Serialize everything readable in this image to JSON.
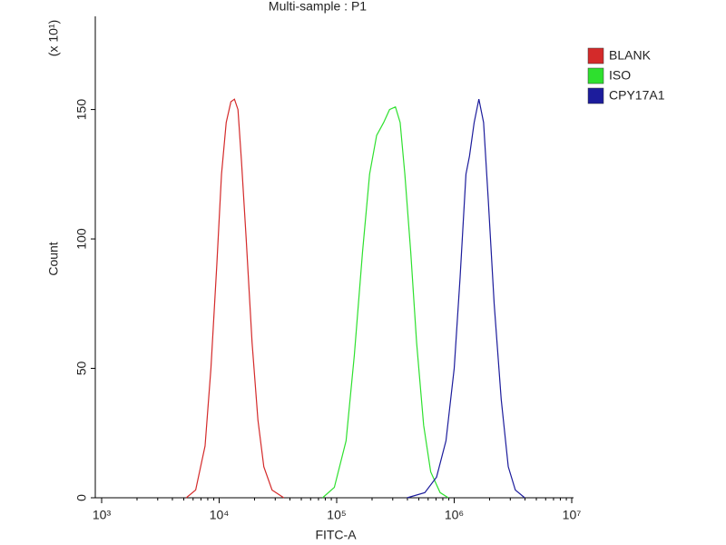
{
  "chart_data": {
    "type": "line",
    "title": "Multi-sample : P1",
    "x_label": "FITC-A",
    "y_label": "Count",
    "y_scale_note": "(x 10¹)",
    "x_log": true,
    "xlim": [
      1000,
      10000000
    ],
    "xticks": [
      {
        "value": 1000,
        "label": "10³"
      },
      {
        "value": 10000,
        "label": "10⁴"
      },
      {
        "value": 100000,
        "label": "10⁵"
      },
      {
        "value": 1000000,
        "label": "10⁶"
      },
      {
        "value": 10000000,
        "label": "10⁷"
      }
    ],
    "ylim": [
      0,
      186
    ],
    "yticks": [
      0,
      50,
      100,
      150
    ],
    "legend_position": "right",
    "series": [
      {
        "name": "BLANK",
        "color": "#d42a2a",
        "x": [
          5248,
          6310,
          7586,
          8511,
          9550,
          10471,
          11482,
          12589,
          13490,
          14454,
          15488,
          16982,
          19055,
          21380,
          23988,
          28184,
          35481
        ],
        "values": [
          0,
          3,
          20,
          50,
          90,
          125,
          145,
          153,
          154,
          150,
          130,
          100,
          60,
          30,
          12,
          3,
          0
        ]
      },
      {
        "name": "ISO",
        "color": "#2ee02e",
        "x": [
          75858,
          95499,
          120226,
          141254,
          165959,
          190546,
          218776,
          251189,
          281838,
          316228,
          346737,
          380189,
          426580,
          478630,
          549541,
          630957,
          758578,
          891251
        ],
        "values": [
          0,
          4,
          22,
          55,
          95,
          125,
          140,
          145,
          150,
          151,
          145,
          125,
          95,
          60,
          28,
          10,
          2,
          0
        ]
      },
      {
        "name": "CPY17A1",
        "color": "#1c1c9c",
        "x": [
          398107,
          562341,
          707946,
          851138,
          1000000,
          1122018,
          1258925,
          1348963,
          1479108,
          1621810,
          1778279,
          1949845,
          2187762,
          2511886,
          2884032,
          3311311,
          3981072
        ],
        "values": [
          0,
          2,
          8,
          22,
          50,
          85,
          125,
          132,
          145,
          154,
          145,
          115,
          75,
          38,
          12,
          3,
          0
        ]
      }
    ]
  }
}
